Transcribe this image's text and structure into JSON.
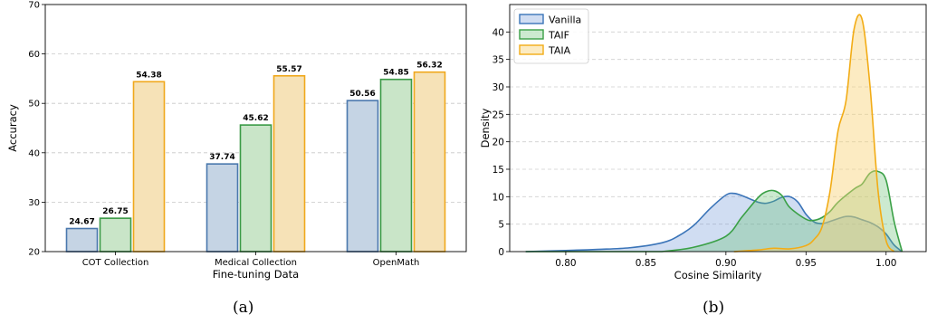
{
  "chart_data": [
    {
      "type": "bar",
      "xlabel": "Fine-tuning Data",
      "ylabel": "Accuracy",
      "ylim": [
        20,
        70
      ],
      "yticks": [
        20,
        30,
        40,
        50,
        60,
        70
      ],
      "grid": "y-dashed",
      "categories": [
        "COT Collection",
        "Medical Collection",
        "OpenMath"
      ],
      "series": [
        {
          "values": [
            24.67,
            37.74,
            50.56
          ],
          "labels": [
            "24.67",
            "37.74",
            "50.56"
          ],
          "fill": "#c5d4e4",
          "stroke": "#4a78ad"
        },
        {
          "values": [
            26.75,
            45.62,
            54.85
          ],
          "labels": [
            "26.75",
            "45.62",
            "54.85"
          ],
          "fill": "#c9e5c8",
          "stroke": "#3a9a46"
        },
        {
          "values": [
            54.38,
            55.57,
            56.32
          ],
          "labels": [
            "54.38",
            "55.57",
            "56.32"
          ],
          "fill": "#f6e2b7",
          "stroke": "#f0a81c"
        }
      ],
      "caption": "(a)"
    },
    {
      "type": "area",
      "xlabel": "Cosine Similarity",
      "ylabel": "Density",
      "xlim": [
        0.765,
        1.025
      ],
      "ylim": [
        0,
        45
      ],
      "xticks": [
        "0.80",
        "0.85",
        "0.90",
        "0.95",
        "1.00"
      ],
      "xtick_values": [
        0.8,
        0.85,
        0.9,
        0.95,
        1.0
      ],
      "yticks": [
        0,
        5,
        10,
        15,
        20,
        25,
        30,
        35,
        40
      ],
      "grid": "y-dashed",
      "legend_position": "top-left",
      "series": [
        {
          "name": "Vanilla",
          "color": "#3a74b8",
          "fill": "rgba(110,150,215,0.32)",
          "x": [
            0.775,
            0.8,
            0.82,
            0.84,
            0.86,
            0.87,
            0.88,
            0.89,
            0.9,
            0.905,
            0.91,
            0.92,
            0.925,
            0.93,
            0.935,
            0.94,
            0.945,
            0.95,
            0.955,
            0.96,
            0.965,
            0.97,
            0.975,
            0.98,
            0.985,
            0.99,
            0.995,
            1.0,
            1.005,
            1.01
          ],
          "y": [
            0,
            0.2,
            0.4,
            0.7,
            1.6,
            2.8,
            4.8,
            7.8,
            10.3,
            10.6,
            10.2,
            9.0,
            8.8,
            9.2,
            9.9,
            10.0,
            9.0,
            6.8,
            5.4,
            5.1,
            5.5,
            6.0,
            6.4,
            6.3,
            5.8,
            5.3,
            4.5,
            3.2,
            1.2,
            0
          ]
        },
        {
          "name": "TAIF",
          "color": "#3aa046",
          "fill": "rgba(95,190,110,0.32)",
          "x": [
            0.86,
            0.88,
            0.9,
            0.91,
            0.92,
            0.925,
            0.93,
            0.935,
            0.94,
            0.95,
            0.955,
            0.96,
            0.965,
            0.97,
            0.98,
            0.985,
            0.99,
            0.995,
            1.0,
            1.005,
            1.01
          ],
          "y": [
            0,
            0.8,
            2.8,
            6.3,
            9.8,
            10.9,
            11.1,
            10.2,
            8.0,
            5.9,
            5.7,
            6.2,
            7.3,
            9.0,
            11.4,
            12.3,
            14.3,
            14.6,
            13.0,
            5.5,
            0
          ],
          "note": "drawn from 0.86 (flat near 0 before)"
        },
        {
          "name": "TAIA",
          "color": "#f2ac16",
          "fill": "rgba(248,210,120,0.45)",
          "x": [
            0.905,
            0.92,
            0.93,
            0.94,
            0.95,
            0.955,
            0.96,
            0.965,
            0.97,
            0.975,
            0.98,
            0.985,
            0.99,
            0.995,
            1.0,
            1.005
          ],
          "y": [
            0,
            0.3,
            0.6,
            0.5,
            1.1,
            2.2,
            4.5,
            11.0,
            22.0,
            27.5,
            40.5,
            42.3,
            30.0,
            11.0,
            2.0,
            0
          ]
        }
      ],
      "caption": "(b)"
    }
  ]
}
